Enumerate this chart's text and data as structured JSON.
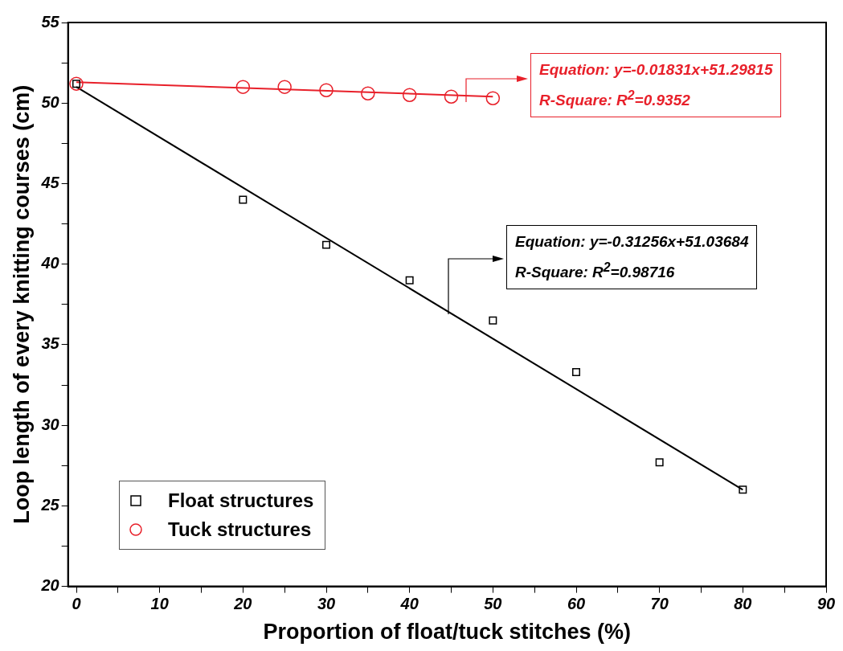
{
  "chart_data": {
    "type": "scatter",
    "xlabel": "Proportion of float/tuck stitches (%)",
    "ylabel": "Loop length of every knitting courses (cm)",
    "xlim": [
      -1,
      90
    ],
    "xticks": [
      0,
      {
        "value": 5,
        "label": null
      },
      10,
      {
        "value": 15,
        "label": null
      },
      20,
      {
        "value": 25,
        "label": null
      },
      30,
      {
        "value": 35,
        "label": null
      },
      40,
      {
        "value": 45,
        "label": null
      },
      50,
      {
        "value": 55,
        "label": null
      },
      60,
      {
        "value": 65,
        "label": null
      },
      70,
      {
        "value": 75,
        "label": null
      },
      80,
      {
        "value": 85,
        "label": null
      },
      90
    ],
    "ylim": [
      20,
      55
    ],
    "yticks": [
      20,
      {
        "value": 22.5,
        "label": null
      },
      25,
      {
        "value": 27.5,
        "label": null
      },
      30,
      {
        "value": 32.5,
        "label": null
      },
      35,
      {
        "value": 37.5,
        "label": null
      },
      40,
      {
        "value": 42.5,
        "label": null
      },
      45,
      {
        "value": 47.5,
        "label": null
      },
      50,
      {
        "value": 52.5,
        "label": null
      },
      55
    ],
    "grid": false,
    "legend": "bottom left",
    "series": [
      {
        "name": "Float structures",
        "color": "#000000",
        "marker": "square",
        "x": [
          0,
          20,
          30,
          40,
          50,
          60,
          70,
          80
        ],
        "values": [
          51.2,
          44.0,
          41.2,
          39.0,
          36.5,
          33.3,
          27.7,
          26.0
        ]
      },
      {
        "name": "Tuck structures",
        "color": "#e8202a",
        "marker": "circle",
        "x": [
          0,
          20,
          25,
          30,
          35,
          40,
          45,
          50
        ],
        "values": [
          51.2,
          51.0,
          51.0,
          50.8,
          50.6,
          50.5,
          50.4,
          50.3
        ]
      },
      {
        "type": "line",
        "color": "#000000",
        "x": [
          0,
          80
        ],
        "values": [
          51.0,
          26.0
        ]
      },
      {
        "type": "line",
        "color": "#e8202a",
        "x": [
          0,
          50
        ],
        "values": [
          51.3,
          50.4
        ]
      }
    ],
    "annotations": [
      "Equation: y=-0.01831x+51.29815\nR-Square: R$^{2}$=0.9352",
      "Equation: y=-0.31256x+51.03684\nR-Square: R$^{2}$=0.98716"
    ]
  }
}
